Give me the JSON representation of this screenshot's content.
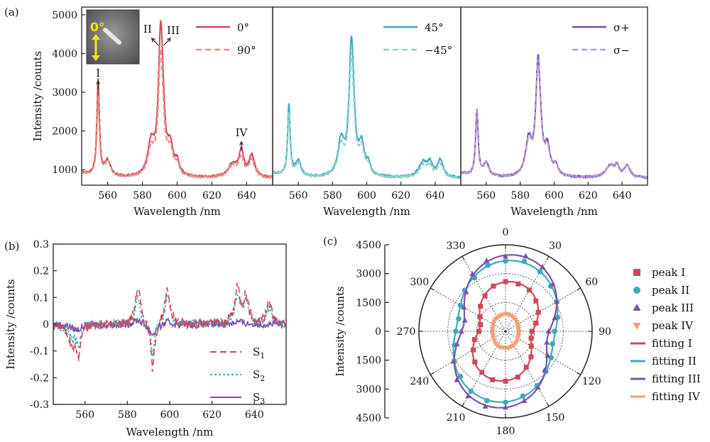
{
  "colors": {
    "red": "#d2485a",
    "red_light": "#ec8a86",
    "teal": "#3fa9bd",
    "teal_light": "#8fd3c8",
    "purple": "#7b52a8",
    "purple_light": "#b69ad6",
    "orange": "#f0a078"
  },
  "chart_data": [
    {
      "id": "a1",
      "panel_label": "(a)",
      "type": "line",
      "xlabel": "Wavelength /nm",
      "ylabel": "Intensity /counts",
      "xlim": [
        545,
        655
      ],
      "ylim": [
        600,
        5200
      ],
      "xticks": [
        560,
        580,
        600,
        620,
        640
      ],
      "yticks": [
        1000,
        2000,
        3000,
        4000,
        5000
      ],
      "series": [
        {
          "name": "0°",
          "style": "solid",
          "peaks": [
            [
              554.5,
              2450,
              0.9
            ],
            [
              560,
              400,
              2.0
            ],
            [
              585,
              800,
              2.2
            ],
            [
              590.5,
              3600,
              1.6
            ],
            [
              592,
              600,
              1.2
            ],
            [
              596,
              700,
              2.0
            ],
            [
              600,
              300,
              1.5
            ],
            [
              632,
              350,
              3.0
            ],
            [
              637,
              650,
              1.6
            ],
            [
              643,
              550,
              2.0
            ]
          ]
        },
        {
          "name": "90°",
          "style": "dashed",
          "peaks": [
            [
              554.5,
              2050,
              0.9
            ],
            [
              560,
              400,
              2.0
            ],
            [
              585,
              650,
              2.2
            ],
            [
              590.5,
              3000,
              1.6
            ],
            [
              592,
              450,
              1.2
            ],
            [
              596,
              600,
              2.0
            ],
            [
              600,
              250,
              1.5
            ],
            [
              632,
              300,
              3.0
            ],
            [
              637,
              500,
              1.6
            ],
            [
              643,
              450,
              2.0
            ]
          ]
        }
      ],
      "annotations": [
        "I",
        "II",
        "III",
        "IV"
      ],
      "inset": "0°"
    },
    {
      "id": "a2",
      "type": "line",
      "xlabel": "Wavelength /nm",
      "xlim": [
        545,
        655
      ],
      "ylim": [
        600,
        5200
      ],
      "xticks": [
        560,
        580,
        600,
        620,
        640
      ],
      "series": [
        {
          "name": "45°",
          "style": "solid",
          "peaks": [
            [
              554.5,
              1850,
              0.9
            ],
            [
              560,
              400,
              2.0
            ],
            [
              585,
              900,
              2.2
            ],
            [
              591,
              3300,
              1.6
            ],
            [
              592.5,
              500,
              1.2
            ],
            [
              597,
              750,
              2.0
            ],
            [
              601,
              250,
              1.5
            ],
            [
              633,
              400,
              3.0
            ],
            [
              637,
              300,
              1.6
            ],
            [
              643,
              450,
              2.0
            ]
          ]
        },
        {
          "name": "−45°",
          "style": "dashed",
          "peaks": [
            [
              554.5,
              1600,
              0.9
            ],
            [
              560,
              350,
              2.0
            ],
            [
              585,
              750,
              2.2
            ],
            [
              591,
              2900,
              1.6
            ],
            [
              592.5,
              400,
              1.2
            ],
            [
              597,
              650,
              2.0
            ],
            [
              601,
              200,
              1.5
            ],
            [
              633,
              300,
              3.0
            ],
            [
              637,
              250,
              1.6
            ],
            [
              643,
              350,
              2.0
            ]
          ]
        }
      ]
    },
    {
      "id": "a3",
      "type": "line",
      "xlabel": "Wavelength /nm",
      "xlim": [
        545,
        655
      ],
      "ylim": [
        600,
        5200
      ],
      "xticks": [
        560,
        580,
        600,
        620,
        640
      ],
      "series": [
        {
          "name": "σ+",
          "style": "solid",
          "peaks": [
            [
              554.5,
              1700,
              0.9
            ],
            [
              560,
              350,
              2.0
            ],
            [
              585,
              900,
              2.2
            ],
            [
              590.5,
              2850,
              1.6
            ],
            [
              592,
              300,
              1.2
            ],
            [
              596,
              700,
              2.0
            ],
            [
              601,
              250,
              1.5
            ],
            [
              633,
              300,
              3.0
            ],
            [
              637,
              250,
              1.6
            ],
            [
              643,
              300,
              2.0
            ]
          ]
        },
        {
          "name": "σ−",
          "style": "dashed",
          "peaks": [
            [
              554.5,
              1650,
              0.9
            ],
            [
              560,
              350,
              2.0
            ],
            [
              585,
              850,
              2.2
            ],
            [
              590.5,
              2750,
              1.6
            ],
            [
              592,
              300,
              1.2
            ],
            [
              596,
              650,
              2.0
            ],
            [
              601,
              250,
              1.5
            ],
            [
              633,
              300,
              3.0
            ],
            [
              637,
              250,
              1.6
            ],
            [
              643,
              300,
              2.0
            ]
          ]
        }
      ]
    },
    {
      "id": "b",
      "panel_label": "(b)",
      "type": "line",
      "xlabel": "Wavelength /nm",
      "ylabel": "Intensity /counts",
      "xlim": [
        545,
        655
      ],
      "ylim": [
        -0.3,
        0.3
      ],
      "xticks": [
        560,
        580,
        600,
        620,
        640
      ],
      "yticks": [
        -0.3,
        -0.2,
        -0.1,
        0,
        0.1,
        0.2,
        0.3
      ],
      "series": [
        {
          "name": "S",
          "sub": "1",
          "style": "long-dash",
          "peaks": [
            [
              554,
              -0.08,
              2.0
            ],
            [
              557,
              -0.1,
              1.0
            ],
            [
              585,
              0.14,
              1.5
            ],
            [
              592,
              -0.18,
              1.0
            ],
            [
              599,
              0.13,
              1.5
            ],
            [
              632,
              0.13,
              1.5
            ],
            [
              636,
              0.1,
              1.5
            ],
            [
              647,
              0.08,
              1.5
            ]
          ]
        },
        {
          "name": "S",
          "sub": "2",
          "style": "dotted",
          "peaks": [
            [
              554,
              -0.05,
              2.0
            ],
            [
              557,
              -0.08,
              1.0
            ],
            [
              585,
              0.1,
              1.5
            ],
            [
              592,
              -0.12,
              1.0
            ],
            [
              599,
              0.1,
              1.5
            ],
            [
              632,
              0.1,
              1.5
            ],
            [
              636,
              0.08,
              1.5
            ],
            [
              647,
              0.06,
              1.5
            ]
          ]
        },
        {
          "name": "S",
          "sub": "3",
          "style": "solid",
          "peaks": [
            [
              556,
              -0.02,
              3.0
            ],
            [
              585,
              0.02,
              2.0
            ],
            [
              592,
              -0.04,
              2.0
            ],
            [
              599,
              0.01,
              2.0
            ],
            [
              632,
              0.01,
              3.0
            ]
          ]
        }
      ],
      "xlabel_visible": true
    },
    {
      "id": "c",
      "panel_label": "(c)",
      "type": "polar",
      "ylabel": "Intensity /counts",
      "rmax": 4500,
      "r_ticks": [
        4500,
        3000,
        1500,
        0,
        1500,
        3000,
        4500
      ],
      "angles": [
        0,
        30,
        60,
        90,
        120,
        150,
        180,
        210,
        240,
        270,
        300,
        330
      ],
      "series": [
        {
          "name": "peak I",
          "fit": "fitting I",
          "marker": "square",
          "a": 2600,
          "b": 1350,
          "phase": 10
        },
        {
          "name": "peak II",
          "fit": "fitting II",
          "marker": "circle",
          "a": 3700,
          "b": 2550,
          "phase": 10
        },
        {
          "name": "peak III",
          "fit": "fitting III",
          "marker": "triangle",
          "a": 4000,
          "b": 2200,
          "phase": 10
        },
        {
          "name": "peak IV",
          "fit": "fitting IV",
          "marker": "triangle-down",
          "a": 880,
          "b": 680,
          "phase": 0
        }
      ]
    }
  ]
}
